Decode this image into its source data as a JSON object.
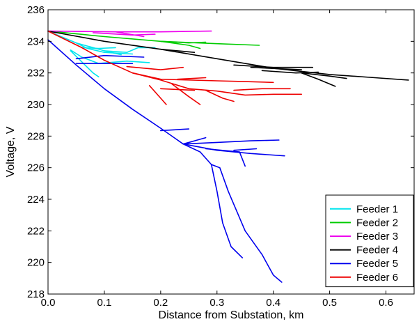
{
  "chart_data": {
    "type": "line",
    "xlabel": "Distance from Substation, km",
    "ylabel": "Voltage, V",
    "xlim": [
      0,
      0.65
    ],
    "ylim": [
      218,
      236
    ],
    "xticks": [
      0,
      0.1,
      0.2,
      0.3,
      0.4,
      0.5,
      0.6
    ],
    "xtick_labels": [
      "0.0",
      "0.1",
      "0.2",
      "0.3",
      "0.4",
      "0.5",
      "0.6"
    ],
    "yticks": [
      218,
      220,
      222,
      224,
      226,
      228,
      230,
      232,
      234,
      236
    ],
    "ytick_labels": [
      "218",
      "220",
      "222",
      "224",
      "226",
      "228",
      "230",
      "232",
      "234",
      "236"
    ],
    "grid": false,
    "legend_position": "bottom-right",
    "series": [
      {
        "name": "Feeder 1",
        "color": "#00e5ee",
        "lines": [
          [
            [
              0,
              234.65
            ],
            [
              0.05,
              233.9
            ],
            [
              0.1,
              233.4
            ],
            [
              0.13,
              233.15
            ]
          ],
          [
            [
              0.05,
              233.9
            ],
            [
              0.07,
              233.55
            ],
            [
              0.1,
              233.3
            ],
            [
              0.15,
              233.2
            ]
          ],
          [
            [
              0.04,
              233.45
            ],
            [
              0.06,
              233.0
            ],
            [
              0.09,
              232.6
            ],
            [
              0.14,
              232.75
            ],
            [
              0.18,
              232.65
            ]
          ],
          [
            [
              0.04,
              233.4
            ],
            [
              0.06,
              232.7
            ],
            [
              0.08,
              232.0
            ],
            [
              0.09,
              231.75
            ]
          ],
          [
            [
              0.1,
              233.4
            ],
            [
              0.14,
              233.3
            ],
            [
              0.16,
              233.6
            ],
            [
              0.19,
              233.6
            ]
          ],
          [
            [
              0.06,
              233.6
            ],
            [
              0.09,
              233.55
            ],
            [
              0.12,
              233.6
            ]
          ]
        ]
      },
      {
        "name": "Feeder 2",
        "color": "#00cc00",
        "lines": [
          [
            [
              0,
              234.65
            ],
            [
              0.1,
              234.3
            ],
            [
              0.2,
              234.0
            ],
            [
              0.3,
              233.85
            ],
            [
              0.375,
              233.75
            ]
          ],
          [
            [
              0.2,
              234.0
            ],
            [
              0.25,
              233.75
            ],
            [
              0.27,
              233.55
            ]
          ],
          [
            [
              0.2,
              234.0
            ],
            [
              0.25,
              233.9
            ],
            [
              0.28,
              233.95
            ]
          ]
        ]
      },
      {
        "name": "Feeder 3",
        "color": "#ee00ee",
        "lines": [
          [
            [
              0,
              234.65
            ],
            [
              0.12,
              234.6
            ],
            [
              0.2,
              234.6
            ],
            [
              0.29,
              234.65
            ]
          ],
          [
            [
              0.12,
              234.6
            ],
            [
              0.17,
              234.3
            ]
          ],
          [
            [
              0.08,
              234.55
            ],
            [
              0.15,
              234.4
            ],
            [
              0.19,
              234.45
            ]
          ]
        ]
      },
      {
        "name": "Feeder 4",
        "color": "#000000",
        "lines": [
          [
            [
              0,
              234.65
            ],
            [
              0.1,
              234.0
            ],
            [
              0.2,
              233.5
            ],
            [
              0.3,
              232.9
            ],
            [
              0.4,
              232.3
            ],
            [
              0.5,
              231.9
            ],
            [
              0.58,
              231.7
            ],
            [
              0.64,
              231.55
            ]
          ],
          [
            [
              0.36,
              232.35
            ],
            [
              0.45,
              232.2
            ]
          ],
          [
            [
              0.45,
              232.0
            ],
            [
              0.48,
              231.6
            ],
            [
              0.51,
              231.15
            ]
          ],
          [
            [
              0.45,
              232.0
            ],
            [
              0.5,
              231.8
            ],
            [
              0.53,
              231.65
            ]
          ],
          [
            [
              0.33,
              232.5
            ],
            [
              0.4,
              232.35
            ],
            [
              0.47,
              232.35
            ]
          ],
          [
            [
              0.38,
              232.15
            ],
            [
              0.44,
              232.0
            ],
            [
              0.48,
              232.05
            ]
          ],
          [
            [
              0.2,
              233.5
            ],
            [
              0.26,
              233.3
            ]
          ]
        ]
      },
      {
        "name": "Feeder 5",
        "color": "#0000ee",
        "lines": [
          [
            [
              0,
              234.1
            ],
            [
              0.05,
              232.5
            ],
            [
              0.1,
              231.0
            ],
            [
              0.15,
              229.7
            ],
            [
              0.2,
              228.5
            ],
            [
              0.24,
              227.5
            ],
            [
              0.27,
              227.0
            ],
            [
              0.29,
              226.2
            ],
            [
              0.305,
              226.0
            ],
            [
              0.32,
              224.5
            ],
            [
              0.35,
              222.0
            ],
            [
              0.38,
              220.5
            ],
            [
              0.4,
              219.2
            ],
            [
              0.415,
              218.75
            ]
          ],
          [
            [
              0.29,
              226.2
            ],
            [
              0.3,
              224.5
            ],
            [
              0.31,
              222.5
            ],
            [
              0.325,
              221.0
            ],
            [
              0.345,
              220.3
            ]
          ],
          [
            [
              0.24,
              227.5
            ],
            [
              0.3,
              227.6
            ],
            [
              0.36,
              227.7
            ],
            [
              0.41,
              227.75
            ]
          ],
          [
            [
              0.24,
              227.5
            ],
            [
              0.3,
              227.1
            ],
            [
              0.36,
              226.9
            ],
            [
              0.42,
              226.75
            ]
          ],
          [
            [
              0.28,
              227.2
            ],
            [
              0.34,
              227.0
            ],
            [
              0.35,
              226.1
            ]
          ],
          [
            [
              0.33,
              227.1
            ],
            [
              0.37,
              227.2
            ]
          ],
          [
            [
              0.24,
              227.5
            ],
            [
              0.27,
              227.8
            ],
            [
              0.28,
              227.9
            ]
          ],
          [
            [
              0.2,
              228.35
            ],
            [
              0.25,
              228.45
            ]
          ],
          [
            [
              0.05,
              232.6
            ],
            [
              0.1,
              232.6
            ],
            [
              0.15,
              232.6
            ]
          ],
          [
            [
              0.05,
              232.9
            ],
            [
              0.1,
              233.1
            ],
            [
              0.17,
              233.0
            ]
          ]
        ]
      },
      {
        "name": "Feeder 6",
        "color": "#ee0000",
        "lines": [
          [
            [
              0,
              234.65
            ],
            [
              0.06,
              233.6
            ],
            [
              0.1,
              232.8
            ],
            [
              0.15,
              232.0
            ],
            [
              0.2,
              231.55
            ],
            [
              0.25,
              231.0
            ],
            [
              0.3,
              230.85
            ],
            [
              0.35,
              230.6
            ],
            [
              0.4,
              230.65
            ],
            [
              0.45,
              230.65
            ]
          ],
          [
            [
              0.15,
              232.0
            ],
            [
              0.2,
              231.6
            ],
            [
              0.3,
              231.5
            ],
            [
              0.35,
              231.45
            ],
            [
              0.4,
              231.4
            ]
          ],
          [
            [
              0.28,
              230.9
            ],
            [
              0.31,
              230.4
            ],
            [
              0.33,
              230.2
            ]
          ],
          [
            [
              0.18,
              231.2
            ],
            [
              0.2,
              230.4
            ],
            [
              0.21,
              230.0
            ]
          ],
          [
            [
              0.22,
              231.3
            ],
            [
              0.25,
              230.5
            ],
            [
              0.27,
              230.0
            ]
          ],
          [
            [
              0.14,
              232.4
            ],
            [
              0.2,
              232.2
            ],
            [
              0.24,
              232.35
            ]
          ],
          [
            [
              0.2,
              231.0
            ],
            [
              0.26,
              230.9
            ]
          ],
          [
            [
              0.33,
              230.9
            ],
            [
              0.38,
              231.0
            ],
            [
              0.43,
              231.0
            ]
          ],
          [
            [
              0.23,
              231.6
            ],
            [
              0.28,
              231.7
            ]
          ]
        ]
      }
    ]
  }
}
